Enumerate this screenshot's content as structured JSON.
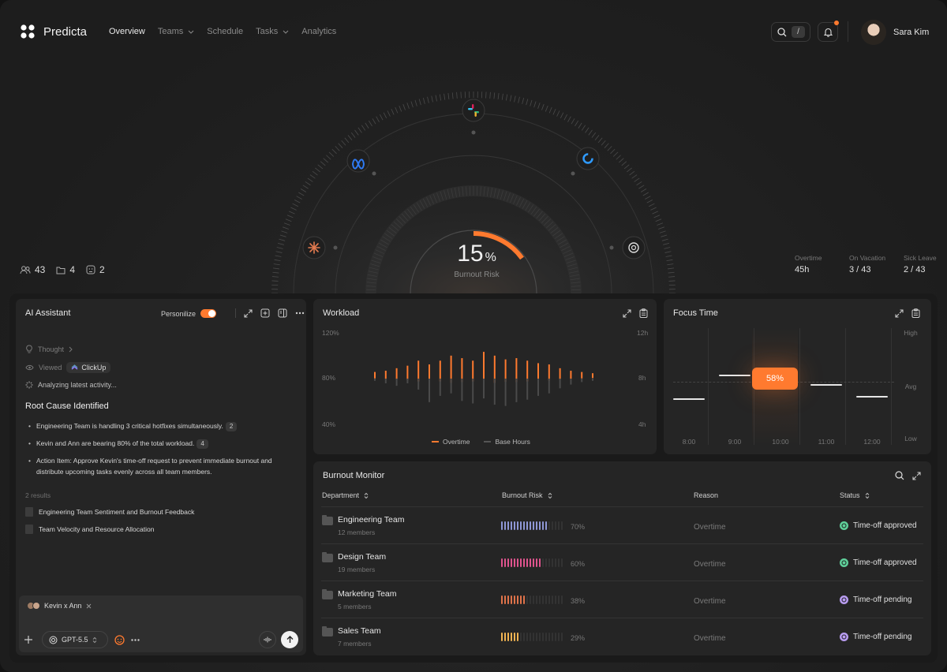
{
  "app": {
    "name": "Predicta"
  },
  "nav": {
    "items": [
      {
        "label": "Overview",
        "active": true,
        "dropdown": false
      },
      {
        "label": "Teams",
        "active": false,
        "dropdown": true
      },
      {
        "label": "Schedule",
        "active": false,
        "dropdown": false
      },
      {
        "label": "Tasks",
        "active": false,
        "dropdown": true
      },
      {
        "label": "Analytics",
        "active": false,
        "dropdown": false
      }
    ]
  },
  "search": {
    "shortcut": "/"
  },
  "user": {
    "name": "Sara Kim"
  },
  "hero": {
    "gauge": {
      "value": "15",
      "unit": "%",
      "label": "Burnout Risk",
      "fraction": 0.15
    },
    "integrations": [
      "slack-icon",
      "meta-icon",
      "clickup-icon",
      "claude-icon",
      "openai-icon"
    ],
    "stats_left": {
      "people": "43",
      "folders": "4",
      "issues": "2"
    },
    "stats_right": [
      {
        "label": "Overtime",
        "value": "45h"
      },
      {
        "label": "On Vacation",
        "value": "3 / 43"
      },
      {
        "label": "Sick Leave",
        "value": "2 / 43"
      }
    ]
  },
  "ai": {
    "title": "AI Assistant",
    "personalize_label": "Personilize",
    "personalize_on": true,
    "trace": {
      "thought": "Thought",
      "viewed": "Viewed",
      "viewed_app": "ClickUp",
      "analyzing": "Analyzing latest activity..."
    },
    "root_cause_title": "Root Cause Identified",
    "bullets": [
      {
        "text": "Engineering Team is handling 3 critical hotfixes simultaneously.",
        "badge": "2"
      },
      {
        "text": "Kevin and Ann are bearing 80% of the total workload.",
        "badge": "4"
      },
      {
        "text": "Action Item: Approve Kevin's time-off request to prevent immediate burnout and distribute upcoming tasks evenly across all team members.",
        "badge": ""
      }
    ],
    "results_label": "2 results",
    "results": [
      "Engineering Team Sentiment and Burnout Feedback",
      "Team Velocity and Resource Allocation"
    ],
    "composer": {
      "context_chip": "Kevin x Ann",
      "model": "GPT-5.5"
    }
  },
  "workload": {
    "title": "Workload",
    "y_left": [
      "120%",
      "80%",
      "40%"
    ],
    "y_right": [
      "12h",
      "8h",
      "4h"
    ],
    "legend": {
      "overtime": "Overtime",
      "base": "Base Hours"
    },
    "colors": {
      "overtime": "#ff7a2f",
      "base": "#4a4a4a"
    }
  },
  "chart_data": {
    "type": "bar",
    "series": [
      {
        "name": "Overtime",
        "values": [
          8,
          10,
          14,
          18,
          26,
          20,
          26,
          34,
          30,
          26,
          40,
          34,
          28,
          30,
          26,
          22,
          20,
          14,
          10,
          8,
          6
        ]
      },
      {
        "name": "Base Hours",
        "values": [
          6,
          10,
          14,
          10,
          20,
          40,
          30,
          26,
          38,
          42,
          34,
          44,
          46,
          40,
          36,
          30,
          26,
          18,
          12,
          8,
          6
        ]
      }
    ],
    "ylim": [
      0,
      50
    ]
  },
  "focus": {
    "title": "Focus Time",
    "x": [
      "8:00",
      "9:00",
      "10:00",
      "11:00",
      "12:00"
    ],
    "y": [
      "High",
      "Avg",
      "Low"
    ],
    "levels": [
      0.4,
      0.6,
      0.68,
      0.52,
      0.42
    ],
    "highlight_label": "58%"
  },
  "burnout": {
    "title": "Burnout Monitor",
    "columns": [
      "Department",
      "Burnout Risk",
      "Reason",
      "Status"
    ],
    "rows": [
      {
        "name": "Engineering Team",
        "members": "12 members",
        "risk": 0.7,
        "risk_label": "70%",
        "color": "#8f97d6",
        "reason": "Overtime",
        "status": "Time-off approved",
        "status_color": "#5fcf9a"
      },
      {
        "name": "Design Team",
        "members": "19 members",
        "risk": 0.6,
        "risk_label": "60%",
        "color": "#e0548e",
        "reason": "Overtime",
        "status": "Time-off approved",
        "status_color": "#5fcf9a"
      },
      {
        "name": "Marketing Team",
        "members": "5 members",
        "risk": 0.38,
        "risk_label": "38%",
        "color": "#e0734a",
        "reason": "Overtime",
        "status": "Time-off pending",
        "status_color": "#b89cf0"
      },
      {
        "name": "Sales Team",
        "members": "7 members",
        "risk": 0.29,
        "risk_label": "29%",
        "color": "#f0b352",
        "reason": "Overtime",
        "status": "Time-off pending",
        "status_color": "#b89cf0"
      }
    ]
  }
}
